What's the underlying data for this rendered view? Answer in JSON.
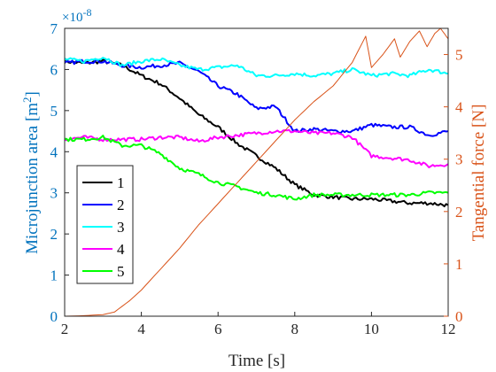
{
  "colors": {
    "left_axis": "#0072BD",
    "right_axis": "#D95319",
    "axes": "#262626",
    "series": [
      "#000000",
      "#0000FF",
      "#00FFFF",
      "#FF00FF",
      "#00FF00"
    ]
  },
  "chart_data": {
    "type": "line",
    "xlabel": "Time [s]",
    "ylabel_left": "Microjunction area [m",
    "ylabel_left_sup": "2",
    "ylabel_left_close": "]",
    "ylabel_right": "Tangential force [N]",
    "multiplier_prefix": "×10",
    "multiplier_exp": "-8",
    "xlim": [
      2,
      12
    ],
    "ylim_left": [
      0,
      7
    ],
    "ylim_right": [
      0,
      5.5
    ],
    "x_ticks": [
      "2",
      "4",
      "6",
      "8",
      "10",
      "12"
    ],
    "y_left_ticks": [
      "0",
      "1",
      "2",
      "3",
      "4",
      "5",
      "6",
      "7"
    ],
    "y_right_ticks": [
      "0",
      "1",
      "2",
      "3",
      "4",
      "5"
    ],
    "grid": false,
    "legend_position": "bottom-left",
    "series": [
      {
        "name": "1",
        "axis": "left",
        "points": [
          [
            2,
            6.2
          ],
          [
            2.5,
            6.15
          ],
          [
            3,
            6.2
          ],
          [
            3.5,
            6.1
          ],
          [
            4,
            5.85
          ],
          [
            4.5,
            5.65
          ],
          [
            5,
            5.3
          ],
          [
            5.5,
            4.9
          ],
          [
            6,
            4.6
          ],
          [
            6.5,
            4.2
          ],
          [
            7,
            3.9
          ],
          [
            7.5,
            3.6
          ],
          [
            8,
            3.2
          ],
          [
            8.5,
            2.95
          ],
          [
            9,
            2.9
          ],
          [
            9.5,
            2.85
          ],
          [
            10,
            2.85
          ],
          [
            10.5,
            2.8
          ],
          [
            11,
            2.75
          ],
          [
            11.5,
            2.75
          ],
          [
            12,
            2.7
          ]
        ]
      },
      {
        "name": "2",
        "axis": "left",
        "points": [
          [
            2,
            6.15
          ],
          [
            2.5,
            6.2
          ],
          [
            3,
            6.2
          ],
          [
            3.5,
            6.1
          ],
          [
            4,
            6.05
          ],
          [
            4.5,
            6.1
          ],
          [
            5,
            6.15
          ],
          [
            5.5,
            5.95
          ],
          [
            6,
            5.6
          ],
          [
            6.5,
            5.4
          ],
          [
            7,
            5.05
          ],
          [
            7.5,
            5.1
          ],
          [
            8,
            4.5
          ],
          [
            8.5,
            4.55
          ],
          [
            9,
            4.5
          ],
          [
            9.5,
            4.5
          ],
          [
            10,
            4.65
          ],
          [
            10.5,
            4.6
          ],
          [
            11,
            4.6
          ],
          [
            11.5,
            4.4
          ],
          [
            12,
            4.5
          ]
        ]
      },
      {
        "name": "3",
        "axis": "left",
        "points": [
          [
            2,
            6.25
          ],
          [
            2.5,
            6.2
          ],
          [
            3,
            6.3
          ],
          [
            3.5,
            6.1
          ],
          [
            4,
            6.2
          ],
          [
            4.5,
            6.25
          ],
          [
            5,
            6.1
          ],
          [
            5.5,
            6.0
          ],
          [
            6,
            6.05
          ],
          [
            6.5,
            6.1
          ],
          [
            7,
            5.85
          ],
          [
            7.5,
            5.85
          ],
          [
            8,
            5.9
          ],
          [
            8.5,
            5.85
          ],
          [
            9,
            5.9
          ],
          [
            9.5,
            6.0
          ],
          [
            10,
            5.85
          ],
          [
            10.5,
            5.9
          ],
          [
            11,
            5.85
          ],
          [
            11.5,
            6.0
          ],
          [
            12,
            5.9
          ]
        ]
      },
      {
        "name": "4",
        "axis": "left",
        "points": [
          [
            2,
            4.3
          ],
          [
            2.5,
            4.35
          ],
          [
            3,
            4.3
          ],
          [
            3.5,
            4.3
          ],
          [
            4,
            4.3
          ],
          [
            4.5,
            4.35
          ],
          [
            5,
            4.35
          ],
          [
            5.5,
            4.25
          ],
          [
            6,
            4.35
          ],
          [
            6.5,
            4.4
          ],
          [
            7,
            4.45
          ],
          [
            7.5,
            4.5
          ],
          [
            8,
            4.5
          ],
          [
            8.5,
            4.45
          ],
          [
            9,
            4.45
          ],
          [
            9.5,
            4.35
          ],
          [
            10,
            3.9
          ],
          [
            10.5,
            3.85
          ],
          [
            11,
            3.8
          ],
          [
            11.5,
            3.65
          ],
          [
            12,
            3.7
          ]
        ]
      },
      {
        "name": "5",
        "axis": "left",
        "points": [
          [
            2,
            4.3
          ],
          [
            2.5,
            4.3
          ],
          [
            3,
            4.35
          ],
          [
            3.5,
            4.15
          ],
          [
            4,
            4.15
          ],
          [
            4.5,
            3.95
          ],
          [
            5,
            3.6
          ],
          [
            5.5,
            3.45
          ],
          [
            6,
            3.25
          ],
          [
            6.5,
            3.15
          ],
          [
            7,
            3.0
          ],
          [
            7.5,
            2.95
          ],
          [
            8,
            2.85
          ],
          [
            8.5,
            2.95
          ],
          [
            9,
            2.95
          ],
          [
            9.5,
            2.95
          ],
          [
            10,
            2.95
          ],
          [
            10.5,
            2.95
          ],
          [
            11,
            2.95
          ],
          [
            11.5,
            3.0
          ],
          [
            12,
            3.0
          ]
        ]
      },
      {
        "name": "",
        "axis": "right",
        "points": [
          [
            2,
            0
          ],
          [
            2.5,
            0.01
          ],
          [
            3,
            0.03
          ],
          [
            3.3,
            0.08
          ],
          [
            3.7,
            0.3
          ],
          [
            4,
            0.5
          ],
          [
            4.5,
            0.9
          ],
          [
            5,
            1.3
          ],
          [
            5.5,
            1.75
          ],
          [
            6,
            2.15
          ],
          [
            6.5,
            2.55
          ],
          [
            7,
            2.95
          ],
          [
            7.5,
            3.35
          ],
          [
            8,
            3.75
          ],
          [
            8.5,
            4.1
          ],
          [
            9,
            4.4
          ],
          [
            9.5,
            4.85
          ],
          [
            9.85,
            5.35
          ],
          [
            10,
            4.75
          ],
          [
            10.3,
            5.0
          ],
          [
            10.6,
            5.3
          ],
          [
            10.75,
            4.95
          ],
          [
            11,
            5.25
          ],
          [
            11.25,
            5.45
          ],
          [
            11.45,
            5.15
          ],
          [
            11.65,
            5.4
          ],
          [
            11.8,
            5.5
          ],
          [
            12,
            5.3
          ]
        ]
      }
    ]
  }
}
